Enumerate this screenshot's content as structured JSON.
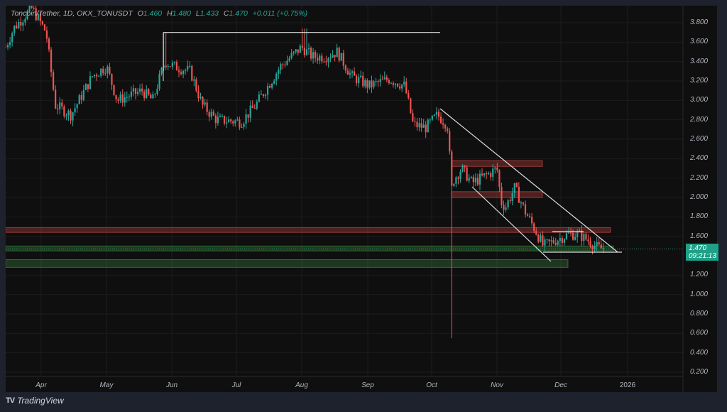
{
  "legend": {
    "symbol": "Toncoin/Tether, 1D, OKX_TONUSDT",
    "open_label": "O",
    "open": "1.460",
    "high_label": "H",
    "high": "1.480",
    "low_label": "L",
    "low": "1.433",
    "close_label": "C",
    "close": "1.470",
    "change": "+0.011 (+0.75%)"
  },
  "price_tag": {
    "price": "1.470",
    "countdown": "09:21:13"
  },
  "footer": {
    "brand": "TradingView",
    "logo": "TV"
  },
  "colors": {
    "up": "#26a69a",
    "down": "#ef5350",
    "background": "#0f0f0f",
    "page": "#1e222d",
    "tag": "#1ea187"
  },
  "chart_data": {
    "type": "candlestick",
    "title": "Toncoin/Tether, 1D, OKX_TONUSDT",
    "xlabel": "",
    "ylabel": "",
    "y_ticks": [
      "3.800",
      "3.600",
      "3.400",
      "3.200",
      "3.000",
      "2.800",
      "2.600",
      "2.400",
      "2.200",
      "2.000",
      "1.800",
      "1.600",
      "1.200",
      "1.000",
      "0.800",
      "0.600",
      "0.400",
      "0.200"
    ],
    "x_ticks": [
      "Apr",
      "May",
      "Jun",
      "Jul",
      "Aug",
      "Sep",
      "Oct",
      "Nov",
      "Dec",
      "2026"
    ],
    "ylim": [
      0.15,
      3.9
    ],
    "grid": true,
    "price_path_closes": [
      {
        "date": "Mar late",
        "close": 3.6
      },
      {
        "date": "Apr early",
        "close": 3.95
      },
      {
        "date": "Apr mid",
        "close": 2.9
      },
      {
        "date": "Apr end",
        "close": 3.05
      },
      {
        "date": "May early",
        "close": 3.35
      },
      {
        "date": "May mid",
        "close": 3.0
      },
      {
        "date": "May end",
        "close": 3.05
      },
      {
        "date": "Jun early",
        "close": 3.3
      },
      {
        "date": "Jun mid",
        "close": 3.35
      },
      {
        "date": "Jun end",
        "close": 2.85
      },
      {
        "date": "Jul mid",
        "close": 2.75
      },
      {
        "date": "Jul end",
        "close": 3.35
      },
      {
        "date": "Aug early",
        "close": 3.62
      },
      {
        "date": "Aug mid",
        "close": 3.5
      },
      {
        "date": "Aug end",
        "close": 3.15
      },
      {
        "date": "Sep mid",
        "close": 3.2
      },
      {
        "date": "Sep end",
        "close": 2.75
      },
      {
        "date": "Oct early",
        "close": 2.85
      },
      {
        "date": "Oct 10 (wick low 0.55)",
        "close": 2.1
      },
      {
        "date": "Oct mid",
        "close": 2.15
      },
      {
        "date": "Oct end",
        "close": 2.3
      },
      {
        "date": "Nov early",
        "close": 1.9
      },
      {
        "date": "Nov mid",
        "close": 2.1
      },
      {
        "date": "Nov end",
        "close": 1.5
      },
      {
        "date": "Dec early",
        "close": 1.62
      },
      {
        "date": "Dec mid",
        "close": 1.5
      },
      {
        "date": "Dec latest",
        "close": 1.47
      }
    ],
    "annotations": [
      {
        "type": "hline",
        "label": "resistance",
        "price": 3.7,
        "from": "late May",
        "to": "late Sep",
        "color": "#ffffff"
      },
      {
        "type": "zone",
        "label": "resistance zone",
        "price_low": 2.32,
        "price_high": 2.38,
        "color": "#ef5350"
      },
      {
        "type": "zone",
        "label": "support zone",
        "price_low": 2.0,
        "price_high": 2.06,
        "color": "#ef5350"
      },
      {
        "type": "zone",
        "label": "resistance zone",
        "price_low": 1.64,
        "price_high": 1.69,
        "color": "#ef5350"
      },
      {
        "type": "zone",
        "label": "support zone",
        "price_low": 1.45,
        "price_high": 1.5,
        "color": "#4caf50"
      },
      {
        "type": "zone",
        "label": "support zone",
        "price_low": 1.28,
        "price_high": 1.36,
        "color": "#4caf50"
      },
      {
        "type": "channel",
        "label": "descending channel",
        "color": "#ffffff"
      },
      {
        "type": "hline",
        "label": "range low",
        "price": 1.45,
        "color": "#ffffff"
      }
    ],
    "last_price": 1.47
  }
}
